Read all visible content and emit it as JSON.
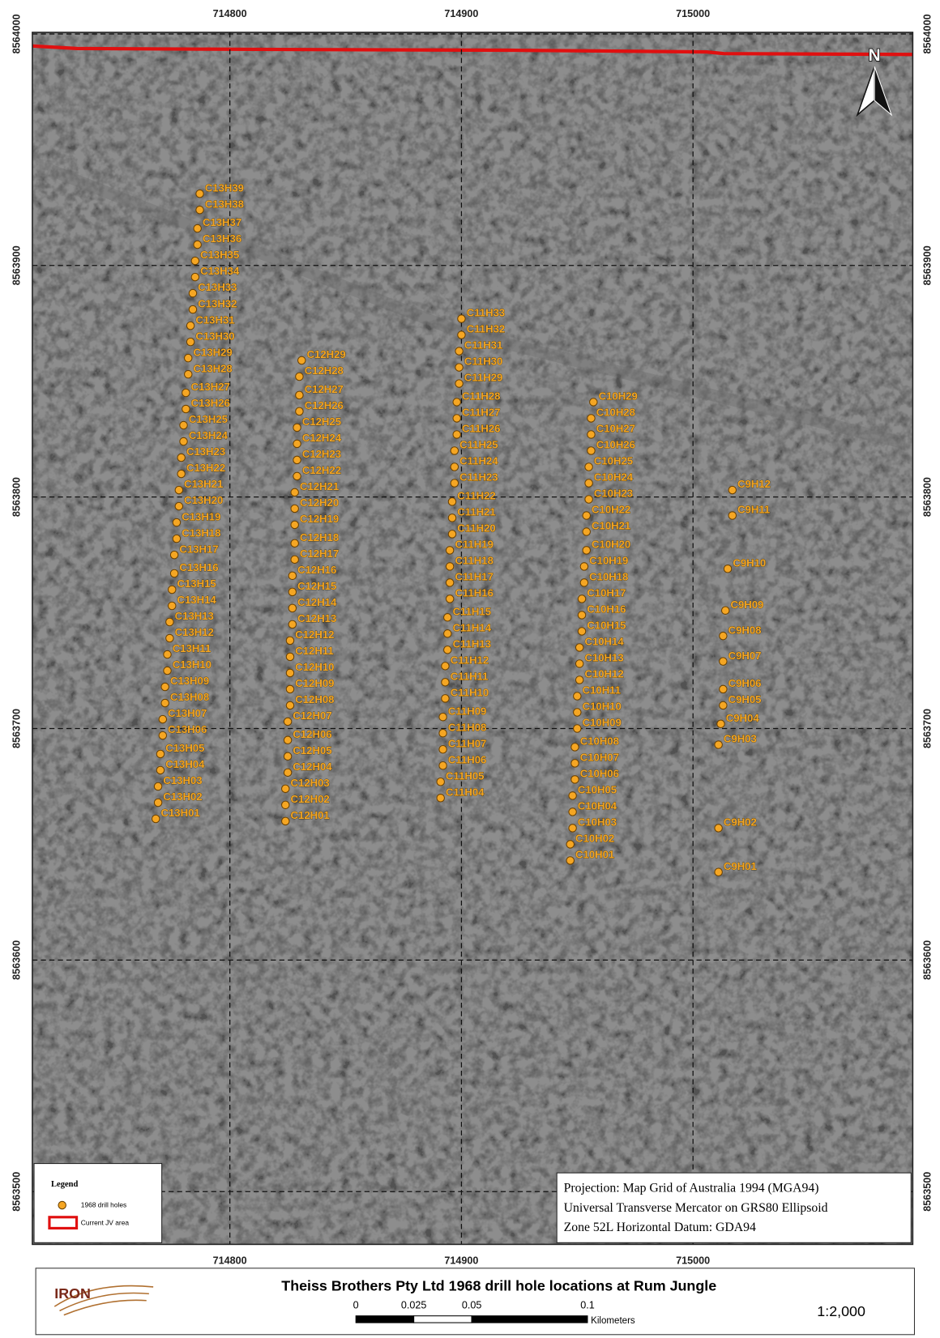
{
  "map": {
    "xlim": [
      714714.7,
      715094.9
    ],
    "ylim": [
      8563477.2,
      8564000.7
    ],
    "eastings": [
      714800,
      714900,
      715000
    ],
    "northings": [
      8564000,
      8563900,
      8563800,
      8563700,
      8563600,
      8563500
    ],
    "north": "N",
    "holes": [
      {
        "label": "C13H01",
        "e": 714768,
        "n": 8563661
      },
      {
        "label": "C13H02",
        "e": 714769,
        "n": 8563668
      },
      {
        "label": "C13H03",
        "e": 714769,
        "n": 8563675
      },
      {
        "label": "C13H04",
        "e": 714770,
        "n": 8563682
      },
      {
        "label": "C13H05",
        "e": 714770,
        "n": 8563689
      },
      {
        "label": "C13H06",
        "e": 714771,
        "n": 8563697
      },
      {
        "label": "C13H07",
        "e": 714771,
        "n": 8563704
      },
      {
        "label": "C13H08",
        "e": 714772,
        "n": 8563711
      },
      {
        "label": "C13H09",
        "e": 714772,
        "n": 8563718
      },
      {
        "label": "C13H10",
        "e": 714773,
        "n": 8563725
      },
      {
        "label": "C13H11",
        "e": 714773,
        "n": 8563732
      },
      {
        "label": "C13H12",
        "e": 714774,
        "n": 8563739
      },
      {
        "label": "C13H13",
        "e": 714774,
        "n": 8563746
      },
      {
        "label": "C13H14",
        "e": 714775,
        "n": 8563753
      },
      {
        "label": "C13H15",
        "e": 714775,
        "n": 8563760
      },
      {
        "label": "C13H16",
        "e": 714776,
        "n": 8563767
      },
      {
        "label": "C13H17",
        "e": 714776,
        "n": 8563775
      },
      {
        "label": "C13H18",
        "e": 714777,
        "n": 8563782
      },
      {
        "label": "C13H19",
        "e": 714777,
        "n": 8563789
      },
      {
        "label": "C13H20",
        "e": 714778,
        "n": 8563796
      },
      {
        "label": "C13H21",
        "e": 714778,
        "n": 8563803
      },
      {
        "label": "C13H22",
        "e": 714779,
        "n": 8563810
      },
      {
        "label": "C13H23",
        "e": 714779,
        "n": 8563817
      },
      {
        "label": "C13H24",
        "e": 714780,
        "n": 8563824
      },
      {
        "label": "C13H25",
        "e": 714780,
        "n": 8563831
      },
      {
        "label": "C13H26",
        "e": 714781,
        "n": 8563838
      },
      {
        "label": "C13H27",
        "e": 714781,
        "n": 8563845
      },
      {
        "label": "C13H28",
        "e": 714782,
        "n": 8563853
      },
      {
        "label": "C13H29",
        "e": 714782,
        "n": 8563860
      },
      {
        "label": "C13H30",
        "e": 714783,
        "n": 8563867
      },
      {
        "label": "C13H31",
        "e": 714783,
        "n": 8563874
      },
      {
        "label": "C13H32",
        "e": 714784,
        "n": 8563881
      },
      {
        "label": "C13H33",
        "e": 714784,
        "n": 8563888
      },
      {
        "label": "C13H34",
        "e": 714785,
        "n": 8563895
      },
      {
        "label": "C13H35",
        "e": 714785,
        "n": 8563902
      },
      {
        "label": "C13H36",
        "e": 714786,
        "n": 8563909
      },
      {
        "label": "C13H37",
        "e": 714786,
        "n": 8563916
      },
      {
        "label": "C13H38",
        "e": 714787,
        "n": 8563924
      },
      {
        "label": "C13H39",
        "e": 714787,
        "n": 8563931
      },
      {
        "label": "C12H01",
        "e": 714824,
        "n": 8563660
      },
      {
        "label": "C12H02",
        "e": 714824,
        "n": 8563667
      },
      {
        "label": "C12H03",
        "e": 714824,
        "n": 8563674
      },
      {
        "label": "C12H04",
        "e": 714825,
        "n": 8563681
      },
      {
        "label": "C12H05",
        "e": 714825,
        "n": 8563688
      },
      {
        "label": "C12H06",
        "e": 714825,
        "n": 8563695
      },
      {
        "label": "C12H07",
        "e": 714825,
        "n": 8563703
      },
      {
        "label": "C12H08",
        "e": 714826,
        "n": 8563710
      },
      {
        "label": "C12H09",
        "e": 714826,
        "n": 8563717
      },
      {
        "label": "C12H10",
        "e": 714826,
        "n": 8563724
      },
      {
        "label": "C12H11",
        "e": 714826,
        "n": 8563731
      },
      {
        "label": "C12H12",
        "e": 714826,
        "n": 8563738
      },
      {
        "label": "C12H13",
        "e": 714827,
        "n": 8563745
      },
      {
        "label": "C12H14",
        "e": 714827,
        "n": 8563752
      },
      {
        "label": "C12H15",
        "e": 714827,
        "n": 8563759
      },
      {
        "label": "C12H16",
        "e": 714827,
        "n": 8563766
      },
      {
        "label": "C12H17",
        "e": 714828,
        "n": 8563773
      },
      {
        "label": "C12H18",
        "e": 714828,
        "n": 8563780
      },
      {
        "label": "C12H19",
        "e": 714828,
        "n": 8563788
      },
      {
        "label": "C12H20",
        "e": 714828,
        "n": 8563795
      },
      {
        "label": "C12H21",
        "e": 714828,
        "n": 8563802
      },
      {
        "label": "C12H22",
        "e": 714829,
        "n": 8563809
      },
      {
        "label": "C12H23",
        "e": 714829,
        "n": 8563816
      },
      {
        "label": "C12H24",
        "e": 714829,
        "n": 8563823
      },
      {
        "label": "C12H25",
        "e": 714829,
        "n": 8563830
      },
      {
        "label": "C12H26",
        "e": 714830,
        "n": 8563837
      },
      {
        "label": "C12H27",
        "e": 714830,
        "n": 8563844
      },
      {
        "label": "C12H28",
        "e": 714830,
        "n": 8563852
      },
      {
        "label": "C12H29",
        "e": 714831,
        "n": 8563859
      },
      {
        "label": "C11H04",
        "e": 714891,
        "n": 8563670
      },
      {
        "label": "C11H05",
        "e": 714891,
        "n": 8563677
      },
      {
        "label": "C11H06",
        "e": 714892,
        "n": 8563684
      },
      {
        "label": "C11H07",
        "e": 714892,
        "n": 8563691
      },
      {
        "label": "C11H08",
        "e": 714892,
        "n": 8563698
      },
      {
        "label": "C11H09",
        "e": 714892,
        "n": 8563705
      },
      {
        "label": "C11H10",
        "e": 714893,
        "n": 8563713
      },
      {
        "label": "C11H11",
        "e": 714893,
        "n": 8563720
      },
      {
        "label": "C11H12",
        "e": 714893,
        "n": 8563727
      },
      {
        "label": "C11H13",
        "e": 714894,
        "n": 8563734
      },
      {
        "label": "C11H14",
        "e": 714894,
        "n": 8563741
      },
      {
        "label": "C11H15",
        "e": 714894,
        "n": 8563748
      },
      {
        "label": "C11H16",
        "e": 714895,
        "n": 8563756
      },
      {
        "label": "C11H17",
        "e": 714895,
        "n": 8563763
      },
      {
        "label": "C11H18",
        "e": 714895,
        "n": 8563770
      },
      {
        "label": "C11H19",
        "e": 714895,
        "n": 8563777
      },
      {
        "label": "C11H20",
        "e": 714896,
        "n": 8563784
      },
      {
        "label": "C11H21",
        "e": 714896,
        "n": 8563791
      },
      {
        "label": "C11H22",
        "e": 714896,
        "n": 8563798
      },
      {
        "label": "C11H23",
        "e": 714897,
        "n": 8563806
      },
      {
        "label": "C11H24",
        "e": 714897,
        "n": 8563813
      },
      {
        "label": "C11H25",
        "e": 714897,
        "n": 8563820
      },
      {
        "label": "C11H26",
        "e": 714898,
        "n": 8563827
      },
      {
        "label": "C11H27",
        "e": 714898,
        "n": 8563834
      },
      {
        "label": "C11H28",
        "e": 714898,
        "n": 8563841
      },
      {
        "label": "C11H29",
        "e": 714899,
        "n": 8563849
      },
      {
        "label": "C11H30",
        "e": 714899,
        "n": 8563856
      },
      {
        "label": "C11H31",
        "e": 714899,
        "n": 8563863
      },
      {
        "label": "C11H32",
        "e": 714900,
        "n": 8563870
      },
      {
        "label": "C11H33",
        "e": 714900,
        "n": 8563877
      },
      {
        "label": "C10H01",
        "e": 714947,
        "n": 8563643
      },
      {
        "label": "C10H02",
        "e": 714947,
        "n": 8563650
      },
      {
        "label": "C10H03",
        "e": 714948,
        "n": 8563657
      },
      {
        "label": "C10H04",
        "e": 714948,
        "n": 8563664
      },
      {
        "label": "C10H05",
        "e": 714948,
        "n": 8563671
      },
      {
        "label": "C10H06",
        "e": 714949,
        "n": 8563678
      },
      {
        "label": "C10H07",
        "e": 714949,
        "n": 8563685
      },
      {
        "label": "C10H08",
        "e": 714949,
        "n": 8563692
      },
      {
        "label": "C10H09",
        "e": 714950,
        "n": 8563700
      },
      {
        "label": "C10H10",
        "e": 714950,
        "n": 8563707
      },
      {
        "label": "C10H11",
        "e": 714950,
        "n": 8563714
      },
      {
        "label": "C10H12",
        "e": 714951,
        "n": 8563721
      },
      {
        "label": "C10H13",
        "e": 714951,
        "n": 8563728
      },
      {
        "label": "C10H14",
        "e": 714951,
        "n": 8563735
      },
      {
        "label": "C10H15",
        "e": 714952,
        "n": 8563742
      },
      {
        "label": "C10H16",
        "e": 714952,
        "n": 8563749
      },
      {
        "label": "C10H17",
        "e": 714952,
        "n": 8563756
      },
      {
        "label": "C10H18",
        "e": 714953,
        "n": 8563763
      },
      {
        "label": "C10H19",
        "e": 714953,
        "n": 8563770
      },
      {
        "label": "C10H20",
        "e": 714954,
        "n": 8563777
      },
      {
        "label": "C10H21",
        "e": 714954,
        "n": 8563785
      },
      {
        "label": "C10H22",
        "e": 714954,
        "n": 8563792
      },
      {
        "label": "C10H23",
        "e": 714955,
        "n": 8563799
      },
      {
        "label": "C10H24",
        "e": 714955,
        "n": 8563806
      },
      {
        "label": "C10H25",
        "e": 714955,
        "n": 8563813
      },
      {
        "label": "C10H26",
        "e": 714956,
        "n": 8563820
      },
      {
        "label": "C10H27",
        "e": 714956,
        "n": 8563827
      },
      {
        "label": "C10H28",
        "e": 714956,
        "n": 8563834
      },
      {
        "label": "C10H29",
        "e": 714957,
        "n": 8563841
      },
      {
        "label": "C9H01",
        "e": 715011,
        "n": 8563638
      },
      {
        "label": "C9H02",
        "e": 715011,
        "n": 8563657
      },
      {
        "label": "C9H03",
        "e": 715011,
        "n": 8563693
      },
      {
        "label": "C9H04",
        "e": 715012,
        "n": 8563702
      },
      {
        "label": "C9H05",
        "e": 715013,
        "n": 8563710
      },
      {
        "label": "C9H06",
        "e": 715013,
        "n": 8563717
      },
      {
        "label": "C9H07",
        "e": 715013,
        "n": 8563729
      },
      {
        "label": "C9H08",
        "e": 715013,
        "n": 8563740
      },
      {
        "label": "C9H09",
        "e": 715014,
        "n": 8563751
      },
      {
        "label": "C9H10",
        "e": 715015,
        "n": 8563769
      },
      {
        "label": "C9H11",
        "e": 715017,
        "n": 8563792
      },
      {
        "label": "C9H12",
        "e": 715017,
        "n": 8563803
      }
    ]
  },
  "legend": {
    "title": "Legend",
    "items": [
      "1968 drill holes",
      "Current JV area"
    ]
  },
  "projection": [
    "Projection: Map Grid of Australia 1994 (MGA94)",
    "Universal Transverse Mercator on GRS80 Ellipsoid",
    "Zone 52L Horizontal Datum: GDA94"
  ],
  "footer": {
    "logo": "IRON",
    "title": "Theiss Brothers Pty Ltd 1968 drill hole locations at Rum Jungle",
    "scale_ticks": [
      0,
      0.025,
      0.05,
      0.1
    ],
    "scale_unit": "Kilometers",
    "ratio": "1:2,000"
  }
}
